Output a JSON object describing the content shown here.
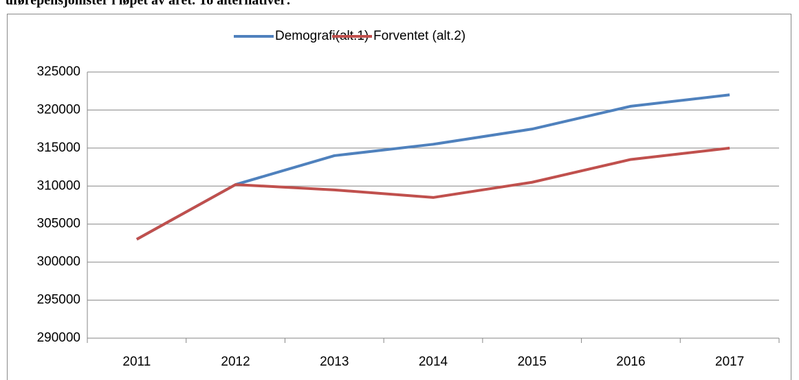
{
  "chart_data": {
    "type": "line",
    "title": "uførepensjonister i løpet av året. To alternativer:",
    "categories": [
      "2011",
      "2012",
      "2013",
      "2014",
      "2015",
      "2016",
      "2017"
    ],
    "series": [
      {
        "name": "Demografi(alt.1)",
        "color": "#4f81bd",
        "values": [
          303000,
          310200,
          314000,
          315500,
          317500,
          320500,
          322000
        ]
      },
      {
        "name": "Forventet (alt.2)",
        "color": "#c0504d",
        "values": [
          303000,
          310200,
          309500,
          308500,
          310500,
          313500,
          315000
        ]
      }
    ],
    "ylim": [
      290000,
      325000
    ],
    "yticks": [
      290000,
      295000,
      300000,
      305000,
      310000,
      315000,
      320000,
      325000
    ],
    "grid": true,
    "legend": "top"
  }
}
